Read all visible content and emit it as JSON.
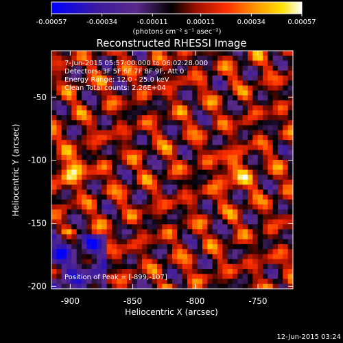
{
  "colorbar": {
    "tick_labels": [
      "-0.00057",
      "-0.00034",
      "-0.00011",
      "0.00011",
      "0.00034",
      "0.00057"
    ],
    "tick_values": [
      -0.00057,
      -0.00034,
      -0.00011,
      0.00011,
      0.00034,
      0.00057
    ],
    "range": [
      -0.00057,
      0.00057
    ],
    "units": "(photons cm⁻² s⁻¹ asec⁻²)",
    "colors": [
      "#0000ff",
      "#3a1aa0",
      "#5a2a8a",
      "#000000",
      "#a01000",
      "#ff3000",
      "#ff9a00",
      "#ffe000",
      "#ffffff"
    ]
  },
  "chart_data": {
    "type": "heatmap",
    "title": "Reconstructed RHESSI Image",
    "xlabel": "Heliocentric X (arcsec)",
    "ylabel": "Heliocentric Y (arcsec)",
    "xlim": [
      -915,
      -722
    ],
    "ylim": [
      -202,
      -13
    ],
    "x_ticks": [
      -900,
      -850,
      -800,
      -750
    ],
    "x_tick_labels": [
      "-900",
      "-850",
      "-800",
      "-750"
    ],
    "y_ticks": [
      -200,
      -150,
      -100,
      -50
    ],
    "y_tick_labels": [
      "-200",
      "-150",
      "-100",
      "-50"
    ],
    "annotations": [
      "7-Jun-2015 05:57:00.000 to 06:02:28.000",
      "Detectors: 3F 5F 6F 7F 8F 9F, Att 0",
      "Energy Range: 12.0 - 25.0 keV",
      "Clean     Total counts: 2.26E+04"
    ],
    "peak_label": "Position of Peak = [-899,-107]",
    "peak_position": [
      -899,
      -107
    ],
    "grid": false
  },
  "footer": {
    "timestamp": "12-Jun-2015 03:24"
  }
}
